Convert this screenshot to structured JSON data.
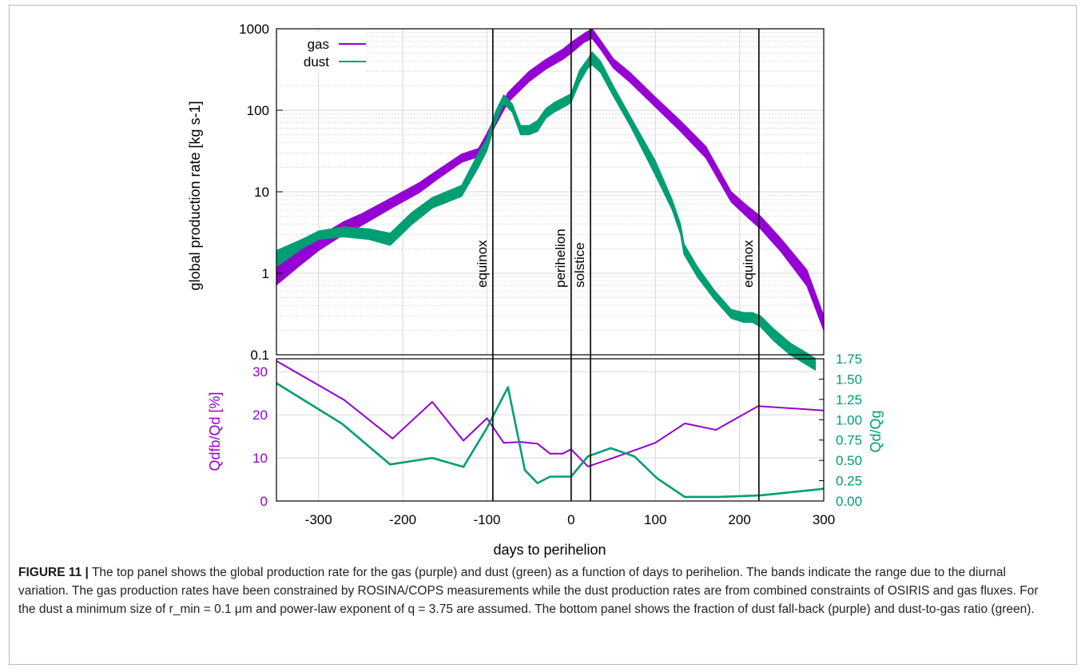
{
  "figure": {
    "number": "FIGURE 11 |",
    "caption": "The top panel shows the global production rate for the gas (purple) and dust (green) as a function of days to perihelion. The bands indicate the range due to the diurnal variation. The gas production rates have been constrained by ROSINA/COPS measurements while the dust production rates are from combined constraints of OSIRIS and gas fluxes. For the dust a minimum size of r_min = 0.1 μm and power-law exponent of q = 3.75 are assumed. The bottom panel shows the fraction of dust fall-back (purple) and dust-to-gas ratio (green)."
  },
  "colors": {
    "gas": "#9400d3",
    "dust": "#009e73",
    "event": "#000000",
    "grid": "#d6d6d6"
  },
  "chart_data": [
    {
      "type": "area",
      "panel": "top",
      "ylabel": "global production rate [kg s-1]",
      "yscale": "log",
      "xlim": [
        -350,
        300
      ],
      "ylim": [
        0.1,
        1000
      ],
      "yticks": [
        "0.1",
        "1",
        "10",
        "100",
        "1000"
      ],
      "grid": true,
      "legend_position": "top-left",
      "series": [
        {
          "name": "gas",
          "x": [
            -350,
            -320,
            -300,
            -270,
            -250,
            -210,
            -180,
            -160,
            -130,
            -110,
            -100,
            -90,
            -75,
            -50,
            -30,
            -10,
            0,
            15,
            25,
            35,
            50,
            70,
            100,
            130,
            160,
            190,
            210,
            225,
            250,
            280,
            300
          ],
          "low": [
            0.72,
            1.3,
            1.9,
            3.0,
            3.8,
            6.6,
            9.8,
            14,
            23,
            27,
            40,
            65,
            125,
            225,
            320,
            420,
            500,
            680,
            760,
            560,
            330,
            220,
            110,
            55,
            26,
            7.5,
            4.8,
            3.5,
            1.8,
            0.7,
            0.2
          ],
          "high": [
            1.2,
            2.0,
            2.8,
            4.3,
            5.3,
            8.8,
            13,
            18,
            29,
            34,
            52,
            85,
            165,
            300,
            420,
            560,
            680,
            870,
            1000,
            720,
            430,
            290,
            145,
            74,
            36,
            10,
            6.6,
            5.0,
            2.6,
            1.1,
            0.3
          ]
        },
        {
          "name": "dust",
          "x": [
            -350,
            -320,
            -300,
            -270,
            -240,
            -215,
            -190,
            -165,
            -130,
            -110,
            -100,
            -90,
            -80,
            -70,
            -60,
            -50,
            -40,
            -30,
            -20,
            -5,
            0,
            10,
            20,
            25,
            35,
            50,
            70,
            100,
            120,
            130,
            134,
            150,
            170,
            190,
            205,
            215,
            225,
            240,
            260,
            280,
            290
          ],
          "low": [
            1.2,
            2.0,
            2.6,
            2.8,
            2.6,
            2.2,
            3.9,
            6.3,
            8.8,
            20,
            32,
            70,
            120,
            95,
            50,
            50,
            55,
            80,
            95,
            115,
            125,
            220,
            330,
            360,
            290,
            150,
            65,
            16,
            6,
            3,
            1.7,
            0.9,
            0.48,
            0.28,
            0.25,
            0.25,
            0.22,
            0.15,
            0.1,
            0.075,
            0.065
          ],
          "high": [
            1.9,
            2.6,
            3.3,
            3.7,
            3.5,
            3.1,
            5.5,
            8.5,
            12,
            30,
            45,
            95,
            155,
            120,
            65,
            65,
            75,
            105,
            125,
            150,
            160,
            310,
            430,
            520,
            400,
            200,
            85,
            24,
            8,
            4,
            2.3,
            1.2,
            0.62,
            0.36,
            0.33,
            0.33,
            0.3,
            0.21,
            0.14,
            0.105,
            0.09
          ]
        }
      ],
      "annotations": [
        {
          "label": "equinox",
          "x": -93
        },
        {
          "label": "perihelion",
          "x": 0
        },
        {
          "label": "solstice",
          "x": 23
        },
        {
          "label": "equinox",
          "x": 223
        }
      ]
    },
    {
      "type": "line",
      "panel": "bottom",
      "xlabel": "days to perihelion",
      "xlim": [
        -350,
        300
      ],
      "xticks": [
        -300,
        -200,
        -100,
        0,
        100,
        200,
        300
      ],
      "ylabel_left": "Qdfb/Qd [%]",
      "ylim_left": [
        0,
        33
      ],
      "yticks_left": [
        0,
        10,
        20,
        30
      ],
      "ylabel_right": "Qd/Qg",
      "ylim_right": [
        0,
        1.75
      ],
      "yticks_right": [
        "0.00",
        "0.25",
        "0.50",
        "0.75",
        "1.00",
        "1.25",
        "1.50",
        "1.75"
      ],
      "grid": true,
      "series": [
        {
          "name": "fall-back fraction",
          "axis": "left",
          "x": [
            -350,
            -270,
            -212,
            -165,
            -128,
            -100,
            -80,
            -60,
            -40,
            -25,
            -10,
            0,
            20,
            50,
            100,
            135,
            172,
            222,
            300
          ],
          "values": [
            32.5,
            23.5,
            14.5,
            23,
            14,
            19.2,
            13.5,
            13.7,
            13.3,
            11,
            11,
            12,
            8,
            10,
            13.5,
            18,
            16.5,
            22,
            21
          ]
        },
        {
          "name": "dust-to-gas ratio",
          "axis": "right",
          "x": [
            -350,
            -272,
            -215,
            -165,
            -128,
            -100,
            -75,
            -55,
            -40,
            -25,
            -10,
            0,
            20,
            47,
            75,
            102,
            135,
            152,
            175,
            225,
            300
          ],
          "values": [
            1.45,
            0.95,
            0.45,
            0.53,
            0.42,
            0.9,
            1.4,
            0.38,
            0.22,
            0.3,
            0.3,
            0.3,
            0.55,
            0.65,
            0.55,
            0.28,
            0.05,
            0.05,
            0.05,
            0.07,
            0.15
          ]
        }
      ]
    }
  ]
}
